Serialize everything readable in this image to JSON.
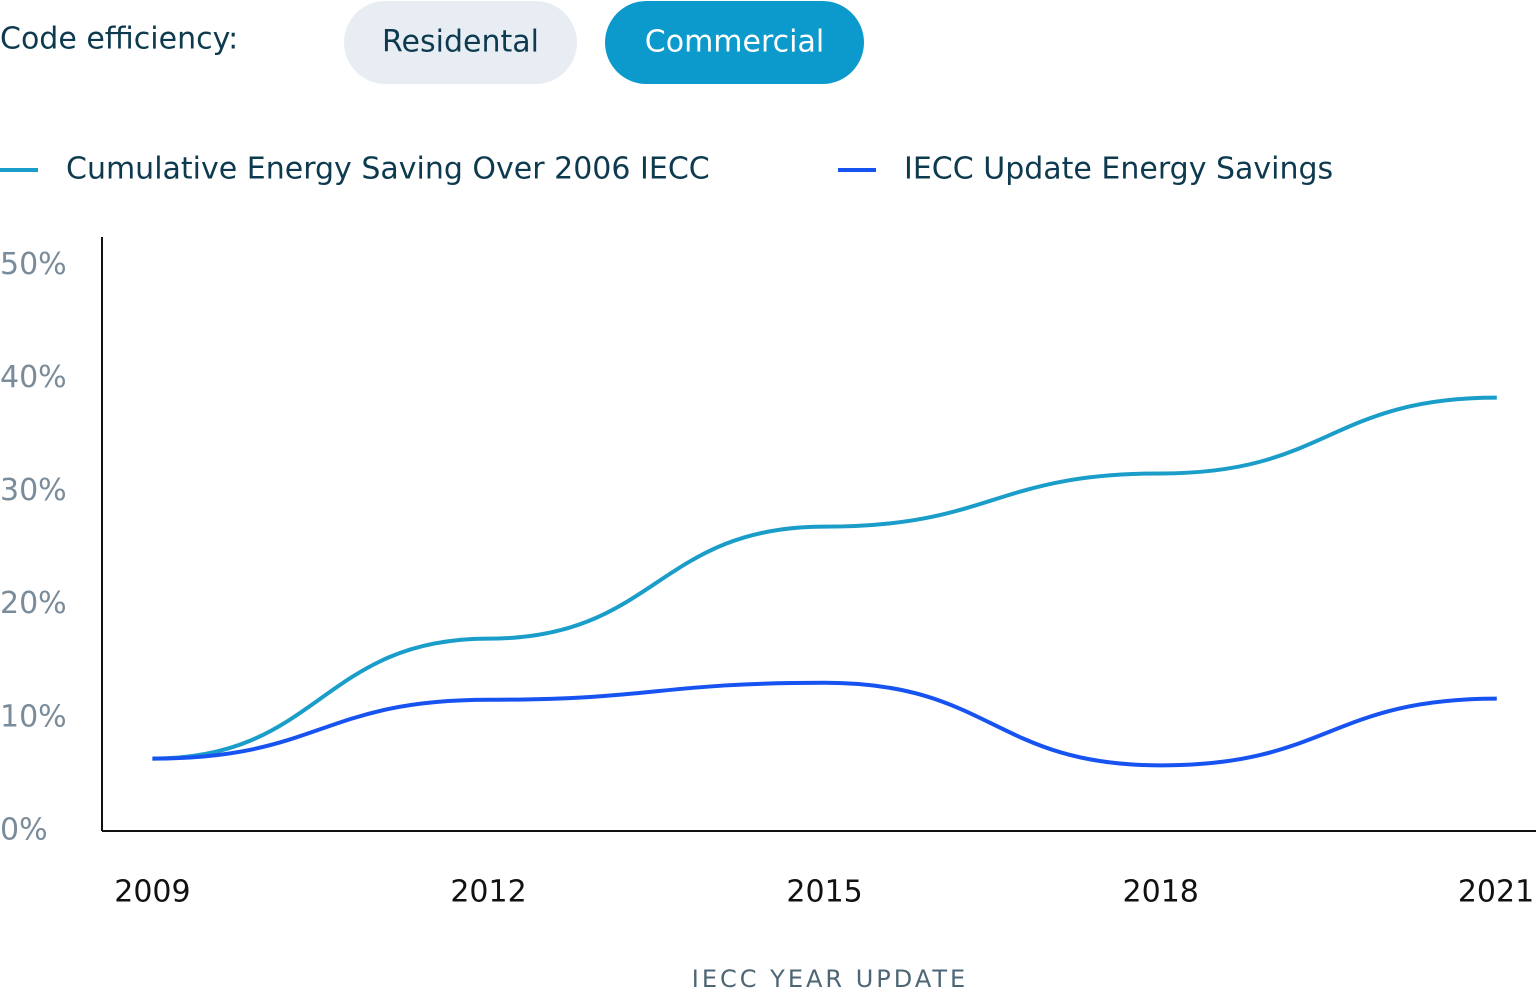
{
  "ui": {
    "label": "Code efficiency:",
    "tabs": [
      "Residental",
      "Commercial"
    ],
    "active_tab": 1
  },
  "chart_data": {
    "type": "line",
    "xlabel": "IECC YEAR UPDATE",
    "x": [
      2009,
      2012,
      2015,
      2018,
      2021
    ],
    "series": [
      {
        "name": "Cumulative Energy Saving Over 2006 IECC",
        "color": "#1a9dc9",
        "values": [
          6.4,
          17.0,
          26.9,
          31.6,
          38.3
        ]
      },
      {
        "name": "IECC Update Energy Savings",
        "color": "#1753f0",
        "values": [
          6.4,
          11.6,
          13.1,
          5.8,
          11.7
        ]
      }
    ],
    "xlim": [
      2008.55,
      2021.35
    ],
    "xticks": [
      2009,
      2012,
      2015,
      2018,
      2021
    ],
    "ylim": [
      0,
      52.5
    ],
    "yticks": [
      {
        "value": 0,
        "label": "0%"
      },
      {
        "value": 10,
        "label": "10%"
      },
      {
        "value": 20,
        "label": "20%"
      },
      {
        "value": 30,
        "label": "30%"
      },
      {
        "value": 40,
        "label": "40%"
      },
      {
        "value": 50,
        "label": "50%"
      }
    ],
    "grid": false
  }
}
